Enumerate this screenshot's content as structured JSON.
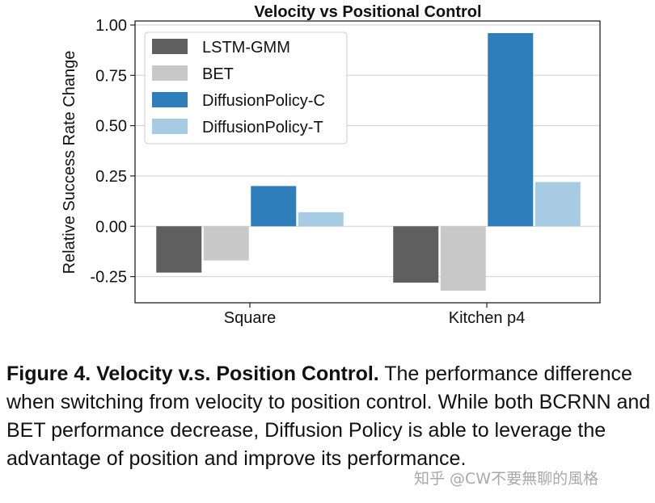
{
  "chart_data": {
    "type": "bar",
    "title": "Velocity vs Positional Control",
    "ylabel": "Relative Success Rate Change",
    "xlabel": "",
    "categories": [
      "Square",
      "Kitchen p4"
    ],
    "ylim": [
      -0.38,
      1.02
    ],
    "yticks": [
      "1.00",
      "0.75",
      "0.50",
      "0.25",
      "0.00",
      "-0.25"
    ],
    "ytick_values": [
      1.0,
      0.75,
      0.5,
      0.25,
      0.0,
      -0.25
    ],
    "grid": true,
    "legend_position": "top-left",
    "series": [
      {
        "name": "LSTM-GMM",
        "color": "#5f5f5f",
        "values": [
          -0.23,
          -0.28
        ]
      },
      {
        "name": "BET",
        "color": "#c8c8c8",
        "values": [
          -0.17,
          -0.32
        ]
      },
      {
        "name": "DiffusionPolicy-C",
        "color": "#2f7ebc",
        "values": [
          0.2,
          0.96
        ]
      },
      {
        "name": "DiffusionPolicy-T",
        "color": "#a6cbe2",
        "values": [
          0.07,
          0.22
        ]
      }
    ]
  },
  "caption": {
    "bold": "Figure 4.  Velocity v.s. Position Control.",
    "text": " The performance difference when switching from velocity to position control. While both BCRNN and BET performance decrease, Diffusion Policy is able to leverage the advantage of position and improve its performance."
  },
  "watermark": "知乎 @CW不要無聊的風格"
}
